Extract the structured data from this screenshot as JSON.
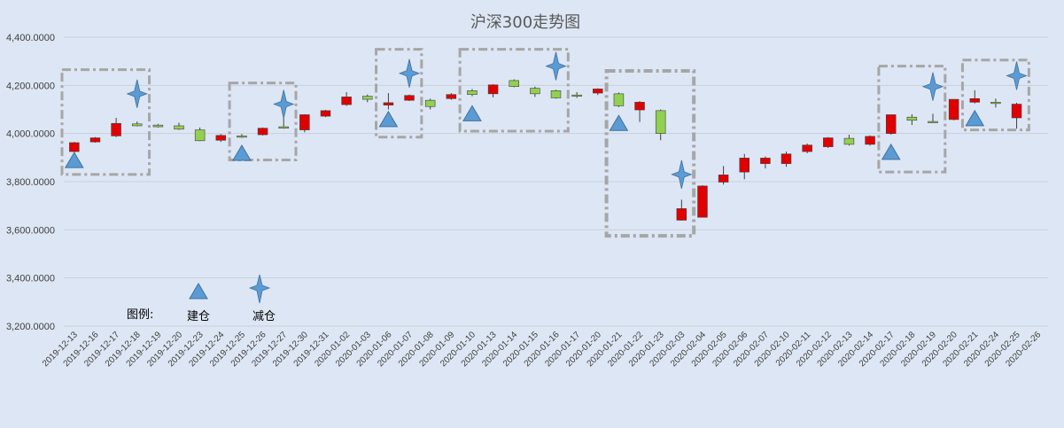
{
  "chart_data": {
    "type": "candlestick",
    "title": "沪深300走势图",
    "ylim": [
      3200,
      4400
    ],
    "yticks": [
      "3,200.0000",
      "3,400.0000",
      "3,600.0000",
      "3,800.0000",
      "4,000.0000",
      "4,200.0000",
      "4,400.0000"
    ],
    "ytick_values": [
      3200,
      3400,
      3600,
      3800,
      4000,
      4200,
      4400
    ],
    "grid": true,
    "colors": {
      "up": "#e00000",
      "down": "#92d050",
      "marker": "#5b9bd5",
      "box": "#a6a6a6",
      "grid": "#c8d0dc"
    },
    "candles": [
      {
        "date": "2019-12-13",
        "open": 3925,
        "high": 3965,
        "low": 3922,
        "close": 3962
      },
      {
        "date": "2019-12-16",
        "open": 3965,
        "high": 3985,
        "low": 3962,
        "close": 3982
      },
      {
        "date": "2019-12-17",
        "open": 3990,
        "high": 4065,
        "low": 3985,
        "close": 4042
      },
      {
        "date": "2019-12-18",
        "open": 4040,
        "high": 4050,
        "low": 4030,
        "close": 4032
      },
      {
        "date": "2019-12-19",
        "open": 4035,
        "high": 4040,
        "low": 4025,
        "close": 4028
      },
      {
        "date": "2019-12-20",
        "open": 4032,
        "high": 4045,
        "low": 4015,
        "close": 4018
      },
      {
        "date": "2019-12-23",
        "open": 4015,
        "high": 4025,
        "low": 3968,
        "close": 3970
      },
      {
        "date": "2019-12-24",
        "open": 3972,
        "high": 3998,
        "low": 3965,
        "close": 3992
      },
      {
        "date": "2019-12-25",
        "open": 3990,
        "high": 3998,
        "low": 3982,
        "close": 3988
      },
      {
        "date": "2019-12-26",
        "open": 3995,
        "high": 4025,
        "low": 3992,
        "close": 4022
      },
      {
        "date": "2019-12-27",
        "open": 4028,
        "high": 4065,
        "low": 4020,
        "close": 4022
      },
      {
        "date": "2019-12-30",
        "open": 4015,
        "high": 4080,
        "low": 4005,
        "close": 4078
      },
      {
        "date": "2019-12-31",
        "open": 4072,
        "high": 4098,
        "low": 4068,
        "close": 4095
      },
      {
        "date": "2020-01-02",
        "open": 4120,
        "high": 4172,
        "low": 4115,
        "close": 4152
      },
      {
        "date": "2020-01-03",
        "open": 4155,
        "high": 4162,
        "low": 4130,
        "close": 4142
      },
      {
        "date": "2020-01-06",
        "open": 4118,
        "high": 4168,
        "low": 4100,
        "close": 4128
      },
      {
        "date": "2020-01-07",
        "open": 4138,
        "high": 4162,
        "low": 4135,
        "close": 4158
      },
      {
        "date": "2020-01-08",
        "open": 4138,
        "high": 4145,
        "low": 4100,
        "close": 4112
      },
      {
        "date": "2020-01-09",
        "open": 4145,
        "high": 4168,
        "low": 4140,
        "close": 4162
      },
      {
        "date": "2020-01-10",
        "open": 4178,
        "high": 4185,
        "low": 4155,
        "close": 4162
      },
      {
        "date": "2020-01-13",
        "open": 4165,
        "high": 4205,
        "low": 4150,
        "close": 4202
      },
      {
        "date": "2020-01-14",
        "open": 4220,
        "high": 4225,
        "low": 4192,
        "close": 4195
      },
      {
        "date": "2020-01-15",
        "open": 4188,
        "high": 4195,
        "low": 4152,
        "close": 4165
      },
      {
        "date": "2020-01-16",
        "open": 4178,
        "high": 4182,
        "low": 4145,
        "close": 4148
      },
      {
        "date": "2020-01-17",
        "open": 4160,
        "high": 4172,
        "low": 4148,
        "close": 4155
      },
      {
        "date": "2020-01-20",
        "open": 4168,
        "high": 4188,
        "low": 4160,
        "close": 4185
      },
      {
        "date": "2020-01-21",
        "open": 4165,
        "high": 4170,
        "low": 4110,
        "close": 4115
      },
      {
        "date": "2020-01-22",
        "open": 4098,
        "high": 4135,
        "low": 4048,
        "close": 4130
      },
      {
        "date": "2020-01-23",
        "open": 4095,
        "high": 4100,
        "low": 3972,
        "close": 4000
      },
      {
        "date": "2020-02-03",
        "open": 3640,
        "high": 3725,
        "low": 3638,
        "close": 3688
      },
      {
        "date": "2020-02-04",
        "open": 3652,
        "high": 3785,
        "low": 3652,
        "close": 3782
      },
      {
        "date": "2020-02-05",
        "open": 3798,
        "high": 3865,
        "low": 3788,
        "close": 3828
      },
      {
        "date": "2020-02-06",
        "open": 3840,
        "high": 3915,
        "low": 3810,
        "close": 3898
      },
      {
        "date": "2020-02-07",
        "open": 3875,
        "high": 3905,
        "low": 3855,
        "close": 3898
      },
      {
        "date": "2020-02-10",
        "open": 3875,
        "high": 3925,
        "low": 3862,
        "close": 3915
      },
      {
        "date": "2020-02-11",
        "open": 3925,
        "high": 3958,
        "low": 3918,
        "close": 3952
      },
      {
        "date": "2020-02-12",
        "open": 3945,
        "high": 3985,
        "low": 3940,
        "close": 3982
      },
      {
        "date": "2020-02-13",
        "open": 3980,
        "high": 3995,
        "low": 3950,
        "close": 3955
      },
      {
        "date": "2020-02-14",
        "open": 3955,
        "high": 3992,
        "low": 3950,
        "close": 3988
      },
      {
        "date": "2020-02-17",
        "open": 4000,
        "high": 4078,
        "low": 3995,
        "close": 4078
      },
      {
        "date": "2020-02-18",
        "open": 4068,
        "high": 4080,
        "low": 4035,
        "close": 4055
      },
      {
        "date": "2020-02-19",
        "open": 4050,
        "high": 4082,
        "low": 4045,
        "close": 4048
      },
      {
        "date": "2020-02-20",
        "open": 4058,
        "high": 4142,
        "low": 4055,
        "close": 4142
      },
      {
        "date": "2020-02-21",
        "open": 4130,
        "high": 4180,
        "low": 4125,
        "close": 4145
      },
      {
        "date": "2020-02-24",
        "open": 4130,
        "high": 4145,
        "low": 4108,
        "close": 4125
      },
      {
        "date": "2020-02-25",
        "open": 4065,
        "high": 4128,
        "low": 4020,
        "close": 4122
      },
      {
        "date": "2020-02-26",
        "open": null,
        "high": null,
        "low": null,
        "close": null
      }
    ],
    "build_markers": [
      {
        "date": "2019-12-13",
        "value": 3888
      },
      {
        "date": "2019-12-25",
        "value": 3918
      },
      {
        "date": "2020-01-06",
        "value": 4058
      },
      {
        "date": "2020-01-10",
        "value": 4082
      },
      {
        "date": "2020-01-21",
        "value": 4042
      },
      {
        "date": "2020-02-17",
        "value": 3922
      },
      {
        "date": "2020-02-21",
        "value": 4062
      }
    ],
    "reduce_markers": [
      {
        "date": "2019-12-18",
        "value": 4165
      },
      {
        "date": "2019-12-27",
        "value": 4122
      },
      {
        "date": "2020-01-07",
        "value": 4250
      },
      {
        "date": "2020-01-16",
        "value": 4280
      },
      {
        "date": "2020-02-03",
        "value": 3830
      },
      {
        "date": "2020-02-19",
        "value": 4195
      },
      {
        "date": "2020-02-25",
        "value": 4240
      }
    ],
    "highlight_boxes": [
      {
        "from": "2019-12-13",
        "to": "2019-12-18",
        "ymin": 3830,
        "ymax": 4265
      },
      {
        "from": "2019-12-25",
        "to": "2019-12-27",
        "ymin": 3890,
        "ymax": 4210
      },
      {
        "from": "2020-01-06",
        "to": "2020-01-07",
        "ymin": 3985,
        "ymax": 4350
      },
      {
        "from": "2020-01-10",
        "to": "2020-01-16",
        "ymin": 4010,
        "ymax": 4350
      },
      {
        "from": "2020-01-21",
        "to": "2020-02-03",
        "ymin": 3575,
        "ymax": 4260
      },
      {
        "from": "2020-02-17",
        "to": "2020-02-19",
        "ymin": 3840,
        "ymax": 4280
      },
      {
        "from": "2020-02-21",
        "to": "2020-02-25",
        "ymin": 4015,
        "ymax": 4305
      }
    ],
    "legend": {
      "title": "图例:",
      "items": [
        {
          "label": "建仓",
          "marker": "triangle"
        },
        {
          "label": "减仓",
          "marker": "star4"
        }
      ]
    }
  }
}
